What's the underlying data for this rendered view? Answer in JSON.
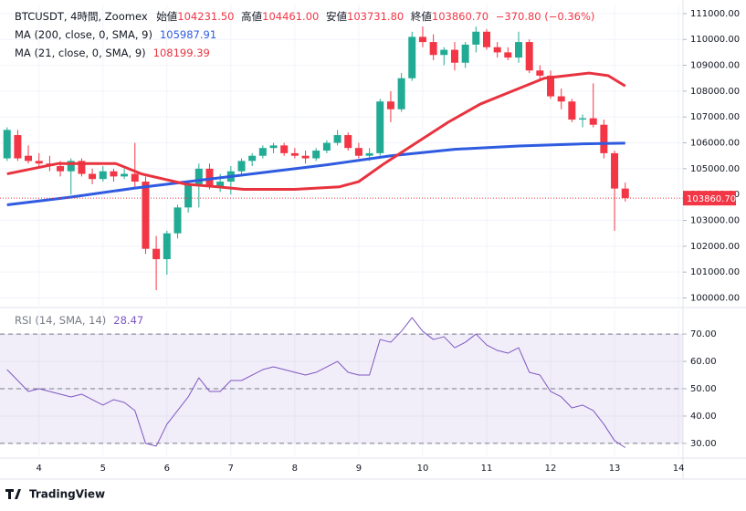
{
  "chart_data": [
    {
      "type": "candlestick",
      "legend": {
        "symbol": "BTCUSDT, 4時間, Zoomex",
        "fields": [
          {
            "label": "始値",
            "value": "104231.50"
          },
          {
            "label": "高値",
            "value": "104461.00"
          },
          {
            "label": "安値",
            "value": "103731.80"
          },
          {
            "label": "終値",
            "value": "103860.70"
          }
        ],
        "change": "−370.80 (−0.36%)"
      },
      "x": [
        3.5,
        3.667,
        3.833,
        4,
        4.167,
        4.333,
        4.5,
        4.667,
        4.833,
        5,
        5.167,
        5.333,
        5.5,
        5.667,
        5.833,
        6,
        6.167,
        6.333,
        6.5,
        6.667,
        6.833,
        7,
        7.167,
        7.333,
        7.5,
        7.667,
        7.833,
        8,
        8.167,
        8.333,
        8.5,
        8.667,
        8.833,
        9,
        9.167,
        9.333,
        9.5,
        9.667,
        9.833,
        10,
        10.167,
        10.333,
        10.5,
        10.667,
        10.833,
        11,
        11.167,
        11.333,
        11.5,
        11.667,
        11.833,
        12,
        12.167,
        12.333,
        12.5,
        12.667,
        12.833,
        13,
        13.167
      ],
      "open": [
        105400,
        106300,
        105500,
        105300,
        105200,
        105100,
        104900,
        105300,
        104800,
        104600,
        104900,
        104700,
        104800,
        104500,
        101900,
        101500,
        102500,
        103500,
        104400,
        105000,
        104300,
        104500,
        104900,
        105300,
        105500,
        105800,
        105900,
        105600,
        105500,
        105400,
        105700,
        106000,
        106300,
        105800,
        105500,
        105600,
        107600,
        107300,
        108500,
        110100,
        109900,
        109400,
        109600,
        109100,
        109800,
        110300,
        109700,
        109500,
        109300,
        109900,
        108800,
        108600,
        107800,
        107600,
        106900,
        106950,
        106700,
        105600,
        104231.5
      ],
      "high": [
        106600,
        106500,
        105900,
        105600,
        105500,
        105300,
        105400,
        105400,
        105000,
        105100,
        105000,
        105000,
        106000,
        104700,
        102400,
        102600,
        103600,
        104500,
        105200,
        105200,
        104800,
        105100,
        105400,
        105600,
        105900,
        106000,
        106000,
        105800,
        105700,
        105800,
        106100,
        106500,
        106400,
        106000,
        105800,
        107700,
        108000,
        108700,
        110300,
        110500,
        110200,
        109700,
        109900,
        109900,
        110500,
        110400,
        109900,
        109700,
        110300,
        110000,
        109000,
        108800,
        108100,
        107700,
        107100,
        108300,
        106900,
        105700,
        104461
      ],
      "low": [
        105300,
        105300,
        105200,
        105000,
        104900,
        104700,
        104000,
        104700,
        104400,
        104500,
        104500,
        104600,
        104300,
        101700,
        100300,
        100900,
        102300,
        103300,
        103500,
        104200,
        104100,
        104000,
        104700,
        105100,
        105400,
        105600,
        105500,
        105400,
        105200,
        105300,
        105600,
        105900,
        105700,
        105400,
        105300,
        105500,
        106800,
        107200,
        108400,
        109700,
        109200,
        109000,
        108800,
        108900,
        109500,
        109600,
        109300,
        109200,
        109100,
        108700,
        108400,
        107700,
        107300,
        106800,
        106600,
        106600,
        105400,
        102600,
        103731.8
      ],
      "close": [
        106500,
        105400,
        105300,
        105200,
        105100,
        104900,
        105300,
        104800,
        104600,
        104900,
        104700,
        104800,
        104500,
        101900,
        101500,
        102500,
        103500,
        104400,
        105000,
        104300,
        104500,
        104900,
        105300,
        105500,
        105800,
        105900,
        105600,
        105500,
        105400,
        105700,
        106000,
        106300,
        105800,
        105500,
        105600,
        107600,
        107300,
        108500,
        110100,
        109900,
        109400,
        109600,
        109100,
        109800,
        110300,
        109700,
        109500,
        109300,
        109900,
        108800,
        108600,
        107800,
        107600,
        106900,
        106950,
        106700,
        105600,
        104231.5,
        103860.7
      ],
      "up_color": "#22ab94",
      "down_color": "#f23645",
      "series": [
        {
          "name": "MA (200, close, 0, SMA, 9)",
          "value_label": "105987.91",
          "color": "#2e5be0",
          "x": [
            3.5,
            4.5,
            5.5,
            6.5,
            7.5,
            8.5,
            9.5,
            10.5,
            11.5,
            12.5,
            13.167
          ],
          "values": [
            103600,
            103900,
            104250,
            104550,
            104850,
            105150,
            105500,
            105750,
            105880,
            105960,
            105990
          ]
        },
        {
          "name": "MA (21, close, 0, SMA, 9)",
          "value_label": "108199.39",
          "color": "#e8333f",
          "x": [
            3.5,
            4.3,
            5.2,
            5.6,
            6.3,
            6.8,
            7.2,
            8,
            8.7,
            9,
            9.4,
            9.9,
            10.4,
            10.9,
            11.4,
            11.9,
            12.6,
            12.9,
            13.167
          ],
          "values": [
            104800,
            105200,
            105200,
            104800,
            104400,
            104300,
            104200,
            104200,
            104300,
            104500,
            105200,
            106000,
            106800,
            107500,
            108000,
            108500,
            108700,
            108600,
            108200
          ]
        }
      ],
      "price_line": {
        "value": 103860.7,
        "label": "103860.70"
      },
      "xlim": [
        3.39,
        14.07
      ],
      "ylim": [
        99700,
        111350
      ],
      "yticks": [
        {
          "value": 100000,
          "label": "100000.00"
        },
        {
          "value": 101000,
          "label": "101000.00"
        },
        {
          "value": 102000,
          "label": "102000.00"
        },
        {
          "value": 103000,
          "label": "103000.00"
        },
        {
          "value": 104000,
          "label": "104000.00"
        },
        {
          "value": 105000,
          "label": "105000.00"
        },
        {
          "value": 106000,
          "label": "106000.00"
        },
        {
          "value": 107000,
          "label": "107000.00"
        },
        {
          "value": 108000,
          "label": "108000.00"
        },
        {
          "value": 109000,
          "label": "109000.00"
        },
        {
          "value": 110000,
          "label": "110000.00"
        },
        {
          "value": 111000,
          "label": "111000.00"
        }
      ],
      "grid": true
    },
    {
      "type": "line",
      "x": [
        3.5,
        3.667,
        3.833,
        4,
        4.167,
        4.333,
        4.5,
        4.667,
        4.833,
        5,
        5.167,
        5.333,
        5.5,
        5.667,
        5.833,
        6,
        6.167,
        6.333,
        6.5,
        6.667,
        6.833,
        7,
        7.167,
        7.333,
        7.5,
        7.667,
        7.833,
        8,
        8.167,
        8.333,
        8.5,
        8.667,
        8.833,
        9,
        9.167,
        9.333,
        9.5,
        9.667,
        9.833,
        10,
        10.167,
        10.333,
        10.5,
        10.667,
        10.833,
        11,
        11.167,
        11.333,
        11.5,
        11.667,
        11.833,
        12,
        12.167,
        12.333,
        12.5,
        12.667,
        12.833,
        13,
        13.167
      ],
      "series": [
        {
          "name": "RSI (14, SMA, 14)",
          "value_label": "28.47",
          "color": "#7e57c2",
          "values": [
            57,
            53,
            49,
            50,
            49,
            48,
            47,
            48,
            46,
            44,
            46,
            45,
            42,
            30,
            29,
            37,
            42,
            47,
            54,
            49,
            49,
            53,
            53,
            55,
            57,
            58,
            57,
            56,
            55,
            56,
            58,
            60,
            56,
            55,
            55,
            68,
            67,
            71,
            76,
            71,
            68,
            69,
            65,
            67,
            70,
            66,
            64,
            63,
            65,
            56,
            55,
            49,
            47,
            43,
            44,
            42,
            37,
            31,
            28.47
          ]
        }
      ],
      "levels": [
        30,
        50,
        70
      ],
      "band_color": "#7e57c2",
      "xlim": [
        3.39,
        14.07
      ],
      "xticks": [
        4,
        5,
        6,
        7,
        8,
        9,
        10,
        11,
        12,
        13,
        14
      ],
      "ylim": [
        25.3,
        78.7
      ],
      "yticks": [
        {
          "value": 30,
          "label": "30.00"
        },
        {
          "value": 40,
          "label": "40.00"
        },
        {
          "value": 50,
          "label": "50.00"
        },
        {
          "value": 60,
          "label": "60.00"
        },
        {
          "value": 70,
          "label": "70.00"
        }
      ],
      "grid": true
    }
  ],
  "footer": {
    "brand": "TradingView"
  }
}
